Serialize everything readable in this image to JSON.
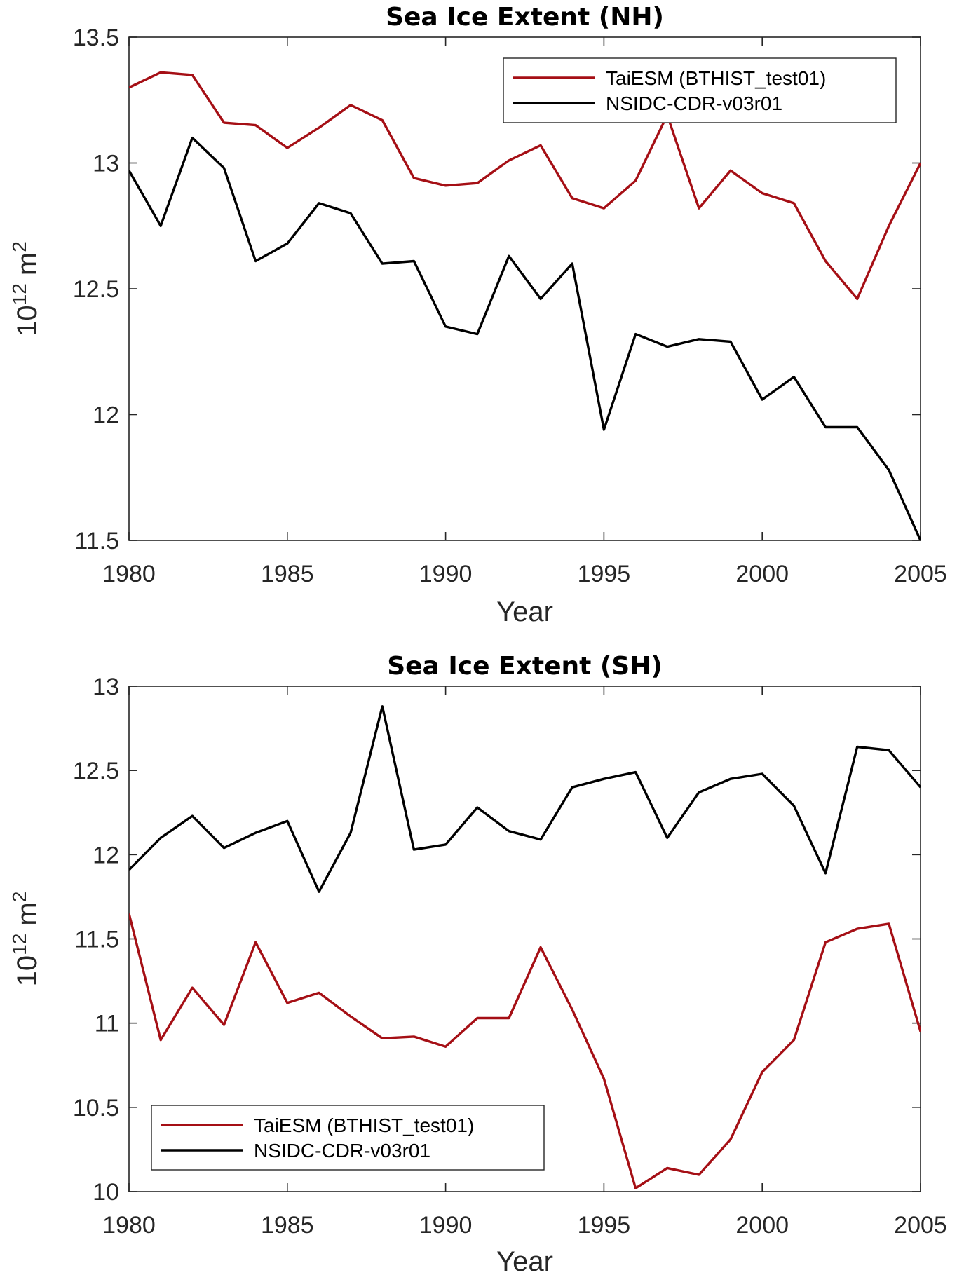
{
  "colors": {
    "model": "#a50f15",
    "obs": "#000000",
    "axis": "#262626"
  },
  "chart_data": [
    {
      "type": "line",
      "title": "Sea Ice Extent (NH)",
      "xlabel": "Year",
      "ylabel_base": "10",
      "ylabel_exp": "12",
      "ylabel_unit": "m",
      "ylabel_unit_exp": "2",
      "xlim": [
        1980,
        2005
      ],
      "ylim": [
        11.5,
        13.5
      ],
      "xticks": [
        1980,
        1985,
        1990,
        1995,
        2000,
        2005
      ],
      "yticks": [
        "11.5",
        "12",
        "12.5",
        "13",
        "13.5"
      ],
      "legend_position": "top-right",
      "x": [
        1980,
        1981,
        1982,
        1983,
        1984,
        1985,
        1986,
        1987,
        1988,
        1989,
        1990,
        1991,
        1992,
        1993,
        1994,
        1995,
        1996,
        1997,
        1998,
        1999,
        2000,
        2001,
        2002,
        2003,
        2004,
        2005
      ],
      "series": [
        {
          "name": "TaiESM (BTHIST_test01)",
          "color": "#a50f15",
          "values": [
            13.3,
            13.36,
            13.35,
            13.16,
            13.15,
            13.06,
            13.14,
            13.23,
            13.17,
            12.94,
            12.91,
            12.92,
            13.01,
            13.07,
            12.86,
            12.82,
            12.93,
            13.19,
            12.82,
            12.97,
            12.88,
            12.84,
            12.61,
            12.46,
            12.75,
            13.0
          ]
        },
        {
          "name": "NSIDC-CDR-v03r01",
          "color": "#000000",
          "values": [
            12.97,
            12.75,
            13.1,
            12.98,
            12.61,
            12.68,
            12.84,
            12.8,
            12.6,
            12.61,
            12.35,
            12.32,
            12.63,
            12.46,
            12.6,
            11.94,
            12.32,
            12.27,
            12.3,
            12.29,
            12.06,
            12.15,
            11.95,
            11.95,
            11.78,
            11.5
          ]
        }
      ]
    },
    {
      "type": "line",
      "title": "Sea Ice Extent (SH)",
      "xlabel": "Year",
      "ylabel_base": "10",
      "ylabel_exp": "12",
      "ylabel_unit": "m",
      "ylabel_unit_exp": "2",
      "xlim": [
        1980,
        2005
      ],
      "ylim": [
        10,
        13
      ],
      "xticks": [
        1980,
        1985,
        1990,
        1995,
        2000,
        2005
      ],
      "yticks": [
        "10",
        "10.5",
        "11",
        "11.5",
        "12",
        "12.5",
        "13"
      ],
      "legend_position": "bottom-left",
      "x": [
        1980,
        1981,
        1982,
        1983,
        1984,
        1985,
        1986,
        1987,
        1988,
        1989,
        1990,
        1991,
        1992,
        1993,
        1994,
        1995,
        1996,
        1997,
        1998,
        1999,
        2000,
        2001,
        2002,
        2003,
        2004,
        2005
      ],
      "series": [
        {
          "name": "TaiESM (BTHIST_test01)",
          "color": "#a50f15",
          "values": [
            11.65,
            10.9,
            11.21,
            10.99,
            11.48,
            11.12,
            11.18,
            11.04,
            10.91,
            10.92,
            10.86,
            11.03,
            11.03,
            11.45,
            11.08,
            10.67,
            10.02,
            10.14,
            10.1,
            10.31,
            10.71,
            10.9,
            11.48,
            11.56,
            11.59,
            10.95
          ]
        },
        {
          "name": "NSIDC-CDR-v03r01",
          "color": "#000000",
          "values": [
            11.91,
            12.1,
            12.23,
            12.04,
            12.13,
            12.2,
            11.78,
            12.13,
            12.88,
            12.03,
            12.06,
            12.28,
            12.14,
            12.09,
            12.4,
            12.45,
            12.49,
            12.1,
            12.37,
            12.45,
            12.48,
            12.29,
            11.89,
            12.64,
            12.62,
            12.4
          ]
        }
      ]
    }
  ]
}
